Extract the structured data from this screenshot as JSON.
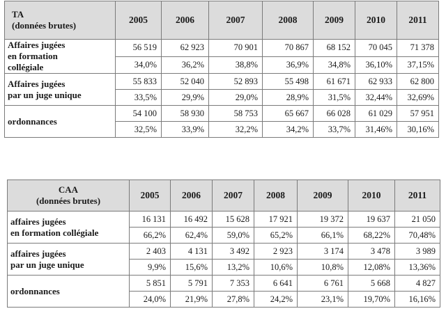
{
  "ta": {
    "title_line1": "TA",
    "title_line2": "(données brutes)",
    "years": [
      "2005",
      "2006",
      "2007",
      "2008",
      "2009",
      "2010",
      "2011"
    ],
    "rows": [
      {
        "label": [
          "Affaires jugées",
          "en formation",
          "collégiale"
        ],
        "values": [
          "56 519",
          "62 923",
          "70 901",
          "70 867",
          "68 152",
          "70 045",
          "71 378"
        ],
        "shares": [
          "34,0%",
          "36,2%",
          "38,8%",
          "36,9%",
          "34,8%",
          "36,10%",
          "37,15%"
        ]
      },
      {
        "label": [
          "Affaires jugées",
          "par un juge unique"
        ],
        "values": [
          "55 833",
          "52 040",
          "52 893",
          "55 498",
          "61 671",
          "62 933",
          "62 800"
        ],
        "shares": [
          "33,5%",
          "29,9%",
          "29,0%",
          "28,9%",
          "31,5%",
          "32,44%",
          "32,69%"
        ]
      },
      {
        "label": [
          "ordonnances"
        ],
        "values": [
          "54 100",
          "58 930",
          "58 753",
          "65 667",
          "66 028",
          "61 029",
          "57 951"
        ],
        "shares": [
          "32,5%",
          "33,9%",
          "32,2%",
          "34,2%",
          "33,7%",
          "31,46%",
          "30,16%"
        ]
      }
    ]
  },
  "caa": {
    "title_line1": "CAA",
    "title_line2": "(données brutes)",
    "years": [
      "2005",
      "2006",
      "2007",
      "2008",
      "2009",
      "2010",
      "2011"
    ],
    "rows": [
      {
        "label": [
          "affaires jugées",
          "en formation collégiale"
        ],
        "values": [
          "16 131",
          "16 492",
          "15 628",
          "17 921",
          "19 372",
          "19 637",
          "21 050"
        ],
        "shares": [
          "66,2%",
          "62,4%",
          "59,0%",
          "65,2%",
          "66,1%",
          "68,22%",
          "70,48%"
        ]
      },
      {
        "label": [
          "affaires jugées",
          "par un juge unique"
        ],
        "values": [
          "2 403",
          "4 131",
          "3 492",
          "2 923",
          "3 174",
          "3 478",
          "3 989"
        ],
        "shares": [
          "9,9%",
          "15,6%",
          "13,2%",
          "10,6%",
          "10,8%",
          "12,08%",
          "13,36%"
        ]
      },
      {
        "label": [
          "ordonnances"
        ],
        "values": [
          "5 851",
          "5 791",
          "7 353",
          "6 641",
          "6 761",
          "5 668",
          "4 827"
        ],
        "shares": [
          "24,0%",
          "21,9%",
          "27,8%",
          "24,2%",
          "23,1%",
          "19,70%",
          "16,16%"
        ]
      }
    ]
  }
}
